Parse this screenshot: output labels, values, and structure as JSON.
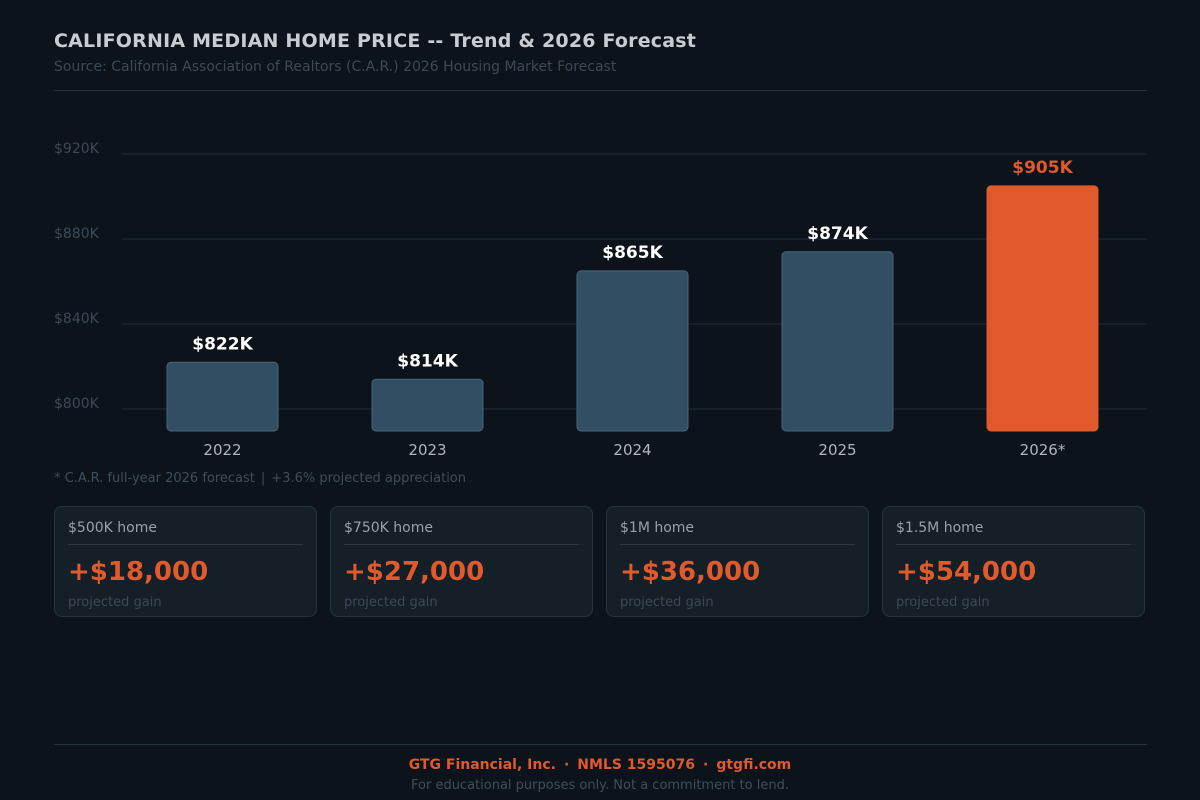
{
  "header": {
    "title": "CALIFORNIA MEDIAN HOME PRICE -- Trend & 2026 Forecast",
    "subtitle": "Source: California Association of Realtors (C.A.R.) 2026 Housing Market Forecast"
  },
  "chart_data": {
    "type": "bar",
    "categories": [
      "2022",
      "2023",
      "2024",
      "2025",
      "2026*"
    ],
    "values": [
      822,
      814,
      865,
      874,
      905
    ],
    "value_labels": [
      "$822K",
      "$814K",
      "$865K",
      "$874K",
      "$905K"
    ],
    "y_ticks": [
      {
        "value": 800,
        "label": "$800K"
      },
      {
        "value": 840,
        "label": "$840K"
      },
      {
        "value": 880,
        "label": "$880K"
      },
      {
        "value": 920,
        "label": "$920K"
      }
    ],
    "ylim": [
      790,
      920
    ],
    "grid": true,
    "highlight_index": 4,
    "colors": {
      "bar": "#324e63",
      "highlight": "#e05a2b",
      "grid": "#1f2d39",
      "value_label": "#ffffff",
      "tick": "#3b4a58",
      "category": "#aeb6be"
    }
  },
  "footnote": {
    "left": "* C.A.R. full-year 2026 forecast",
    "separator": "|",
    "right": "+3.6% projected appreciation"
  },
  "cards": [
    {
      "label": "$500K home",
      "value": "+$18,000",
      "caption": "projected gain"
    },
    {
      "label": "$750K home",
      "value": "+$27,000",
      "caption": "projected gain"
    },
    {
      "label": "$1M home",
      "value": "+$36,000",
      "caption": "projected gain"
    },
    {
      "label": "$1.5M home",
      "value": "+$54,000",
      "caption": "projected gain"
    }
  ],
  "footer": {
    "company": "GTG Financial, Inc.",
    "nmls": "NMLS 1595076",
    "website": "gtgfi.com",
    "separator": "·",
    "disclaimer": "For educational purposes only. Not a commitment to lend."
  }
}
